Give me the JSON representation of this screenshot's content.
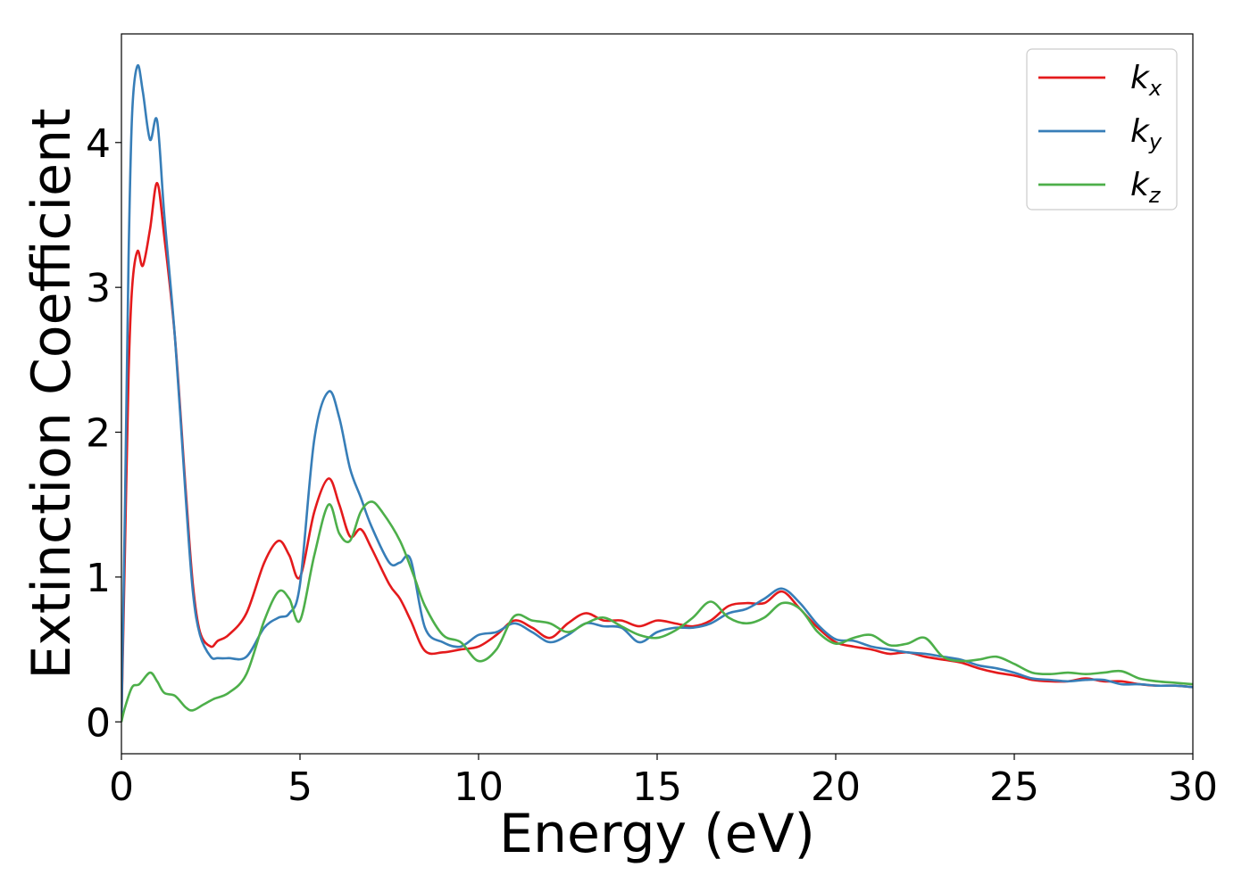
{
  "chart_data": {
    "type": "line",
    "xlabel": "Energy (eV)",
    "ylabel": "Extinction Coefficient",
    "xlim": [
      0,
      30
    ],
    "ylim": [
      -0.22,
      4.75
    ],
    "xticks": [
      0,
      5,
      10,
      15,
      20,
      25,
      30
    ],
    "yticks": [
      0,
      1,
      2,
      3,
      4
    ],
    "grid": false,
    "legend_position": "top-right",
    "series": [
      {
        "name": "k",
        "subscript": "x",
        "color": "#e41a1c",
        "x": [
          0,
          0.1,
          0.2,
          0.3,
          0.45,
          0.6,
          0.8,
          1.0,
          1.2,
          1.5,
          1.8,
          2.0,
          2.2,
          2.5,
          2.7,
          3.0,
          3.5,
          4.0,
          4.4,
          4.7,
          5.0,
          5.4,
          5.8,
          6.1,
          6.4,
          6.7,
          7.0,
          7.5,
          7.8,
          8.1,
          8.5,
          9.0,
          9.5,
          10.0,
          10.5,
          11.0,
          11.5,
          12.0,
          12.5,
          13.0,
          13.5,
          14.0,
          14.5,
          15.0,
          15.5,
          16.0,
          16.5,
          17.0,
          17.5,
          18.0,
          18.5,
          19.0,
          19.5,
          20.0,
          20.5,
          21.0,
          21.5,
          22.0,
          22.5,
          23.0,
          23.5,
          24.0,
          24.5,
          25.0,
          25.5,
          26.0,
          26.5,
          27.0,
          27.5,
          28.0,
          28.5,
          29.0,
          29.5,
          30.0
        ],
        "values": [
          0,
          1.2,
          2.4,
          3.0,
          3.25,
          3.15,
          3.4,
          3.72,
          3.35,
          2.65,
          1.6,
          0.95,
          0.62,
          0.52,
          0.56,
          0.6,
          0.75,
          1.1,
          1.25,
          1.15,
          1.0,
          1.45,
          1.68,
          1.5,
          1.28,
          1.33,
          1.2,
          0.95,
          0.85,
          0.7,
          0.49,
          0.48,
          0.5,
          0.52,
          0.6,
          0.7,
          0.65,
          0.58,
          0.68,
          0.75,
          0.7,
          0.7,
          0.66,
          0.7,
          0.68,
          0.66,
          0.7,
          0.8,
          0.82,
          0.82,
          0.9,
          0.78,
          0.65,
          0.55,
          0.52,
          0.5,
          0.47,
          0.48,
          0.45,
          0.43,
          0.41,
          0.37,
          0.34,
          0.32,
          0.29,
          0.28,
          0.28,
          0.3,
          0.28,
          0.28,
          0.26,
          0.25,
          0.25,
          0.24
        ]
      },
      {
        "name": "k",
        "subscript": "y",
        "color": "#377eb8",
        "x": [
          0,
          0.1,
          0.2,
          0.3,
          0.45,
          0.6,
          0.8,
          1.0,
          1.2,
          1.5,
          1.8,
          2.0,
          2.2,
          2.5,
          2.7,
          3.0,
          3.5,
          4.0,
          4.4,
          4.7,
          5.0,
          5.4,
          5.8,
          6.1,
          6.4,
          6.7,
          7.0,
          7.5,
          7.8,
          8.1,
          8.5,
          9.0,
          9.5,
          10.0,
          10.5,
          11.0,
          11.5,
          12.0,
          12.5,
          13.0,
          13.5,
          14.0,
          14.5,
          15.0,
          15.5,
          16.0,
          16.5,
          17.0,
          17.5,
          18.0,
          18.5,
          19.0,
          19.5,
          20.0,
          20.5,
          21.0,
          21.5,
          22.0,
          22.5,
          23.0,
          23.5,
          24.0,
          24.5,
          25.0,
          25.5,
          26.0,
          26.5,
          27.0,
          27.5,
          28.0,
          28.5,
          29.0,
          29.5,
          30.0
        ],
        "values": [
          0,
          1.5,
          3.2,
          4.2,
          4.53,
          4.35,
          4.02,
          4.15,
          3.5,
          2.65,
          1.55,
          0.9,
          0.6,
          0.45,
          0.44,
          0.44,
          0.45,
          0.65,
          0.72,
          0.75,
          0.95,
          1.95,
          2.28,
          2.1,
          1.75,
          1.55,
          1.35,
          1.1,
          1.1,
          1.12,
          0.65,
          0.55,
          0.52,
          0.6,
          0.62,
          0.68,
          0.62,
          0.55,
          0.6,
          0.68,
          0.66,
          0.65,
          0.55,
          0.62,
          0.65,
          0.65,
          0.68,
          0.75,
          0.78,
          0.85,
          0.92,
          0.82,
          0.67,
          0.57,
          0.56,
          0.52,
          0.5,
          0.48,
          0.47,
          0.45,
          0.43,
          0.39,
          0.37,
          0.34,
          0.3,
          0.29,
          0.28,
          0.29,
          0.29,
          0.26,
          0.26,
          0.25,
          0.25,
          0.24
        ]
      },
      {
        "name": "k",
        "subscript": "z",
        "color": "#4daf4a",
        "x": [
          0,
          0.1,
          0.3,
          0.5,
          0.8,
          1.0,
          1.2,
          1.5,
          1.8,
          2.0,
          2.3,
          2.6,
          3.0,
          3.5,
          4.0,
          4.4,
          4.7,
          5.0,
          5.4,
          5.8,
          6.1,
          6.4,
          6.7,
          7.0,
          7.3,
          7.8,
          8.2,
          8.5,
          9.0,
          9.5,
          10.0,
          10.5,
          11.0,
          11.5,
          12.0,
          12.5,
          13.0,
          13.5,
          14.0,
          14.5,
          15.0,
          15.5,
          16.0,
          16.5,
          17.0,
          17.5,
          18.0,
          18.5,
          19.0,
          19.5,
          20.0,
          20.5,
          21.0,
          21.5,
          22.0,
          22.5,
          23.0,
          23.5,
          24.0,
          24.5,
          25.0,
          25.5,
          26.0,
          26.5,
          27.0,
          27.5,
          28.0,
          28.5,
          29.0,
          29.5,
          30.0
        ],
        "values": [
          0,
          0.1,
          0.24,
          0.26,
          0.34,
          0.28,
          0.2,
          0.18,
          0.1,
          0.08,
          0.12,
          0.16,
          0.2,
          0.33,
          0.7,
          0.9,
          0.85,
          0.7,
          1.15,
          1.5,
          1.3,
          1.25,
          1.45,
          1.52,
          1.45,
          1.25,
          1.0,
          0.8,
          0.6,
          0.55,
          0.42,
          0.5,
          0.73,
          0.7,
          0.68,
          0.62,
          0.68,
          0.72,
          0.66,
          0.6,
          0.58,
          0.63,
          0.72,
          0.83,
          0.72,
          0.68,
          0.72,
          0.82,
          0.78,
          0.62,
          0.54,
          0.58,
          0.6,
          0.53,
          0.54,
          0.58,
          0.45,
          0.42,
          0.43,
          0.45,
          0.4,
          0.34,
          0.33,
          0.34,
          0.33,
          0.34,
          0.35,
          0.3,
          0.28,
          0.27,
          0.26
        ]
      }
    ]
  }
}
